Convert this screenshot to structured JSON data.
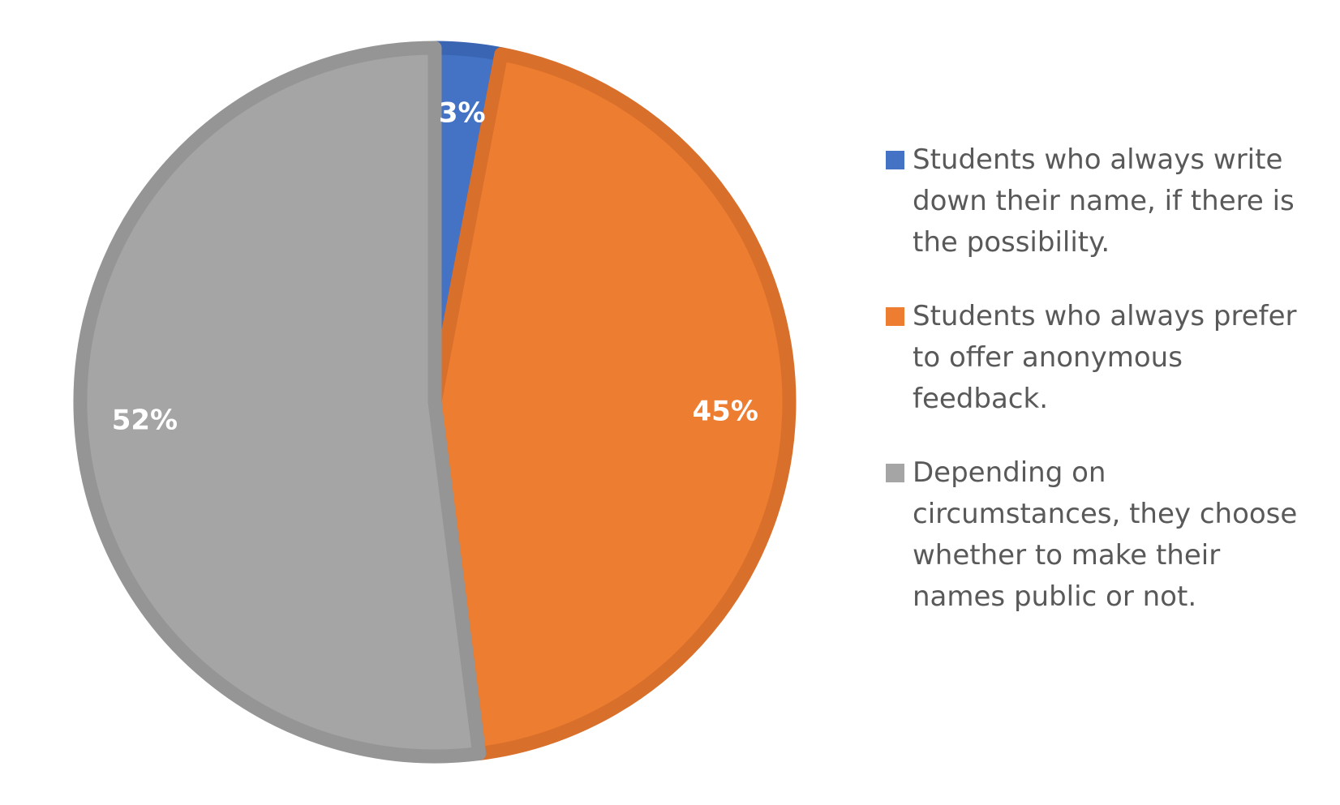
{
  "chart_data": {
    "type": "pie",
    "title": "",
    "labels": [
      "Students who always write down their name, if there is the possibility.",
      "Students who always prefer to offer anonymous feedback.",
      "Depending on circumstances, they choose whether to make their names public or not."
    ],
    "values": [
      3,
      45,
      52
    ],
    "value_labels": [
      "3%",
      "45%",
      "52%"
    ],
    "colors": [
      "#4472C4",
      "#ED7D31",
      "#A5A5A5"
    ],
    "border_colors": [
      "#3A65B3",
      "#D86F2B",
      "#959595"
    ],
    "start_angle_deg": 0,
    "direction": "clockwise",
    "legend_position": "right"
  }
}
